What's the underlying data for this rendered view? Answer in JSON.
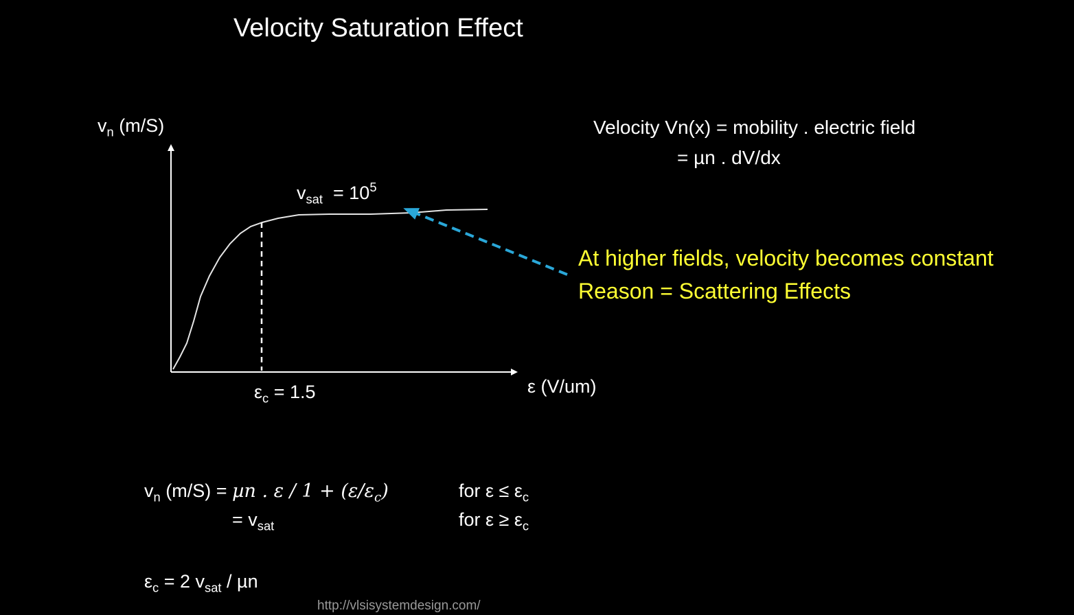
{
  "slide": {
    "title": "Velocity Saturation Effect",
    "url": "http://vlsisystemdesign.com/"
  },
  "graph": {
    "y_axis_main": "v",
    "y_axis_sub": "n",
    "y_axis_unit": "(m/S)",
    "x_axis_label": "ε (V/um)",
    "critical_main": "ε",
    "critical_sub": "c",
    "critical_value": "= 1.5",
    "vsat_main": "v",
    "vsat_sub": "sat",
    "vsat_eq": "= 10",
    "vsat_exp": "5"
  },
  "definition": {
    "line1": "Velocity Vn(x) = mobility . electric field",
    "line2": "= µn . dV/dx"
  },
  "annotation": {
    "line1": "At higher fields, velocity becomes constant",
    "line2": "Reason = Scattering Effects",
    "color": "#ffff33",
    "arrow_color": "#2aa7d8"
  },
  "formulas": {
    "f1_main": "v",
    "f1_sub": "n",
    "f1_lhs": " (m/S) = ",
    "f1_expr": "µn . ε / 1 + (ε/ε",
    "f1_expr_sub": "c",
    "f1_expr_end": ")",
    "f1_cond": "for ε ≤ ε",
    "f1_cond_sub": "c",
    "f2_eq": "= v",
    "f2_sub": "sat",
    "f2_cond": "for ε ≥ ε",
    "f2_cond_sub": "c",
    "f3_main": "ε",
    "f3_sub": "c",
    "f3_mid": " = 2 v",
    "f3_sub2": "sat",
    "f3_end": " / µn"
  }
}
